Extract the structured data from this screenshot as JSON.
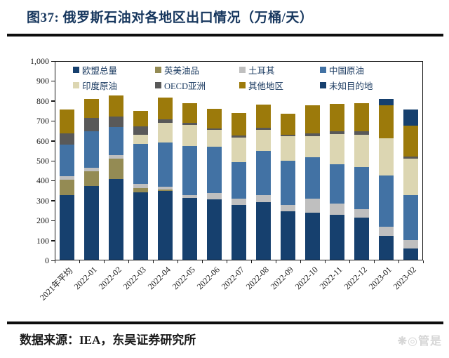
{
  "header": {
    "title": "图37:  俄罗斯石油对各地区出口情况（万桶/天）"
  },
  "footer": {
    "source": "数据来源：IEA，东吴证券研究所"
  },
  "watermark": "❋◎管是",
  "chart_data": {
    "type": "bar",
    "stacked": true,
    "title": "俄罗斯石油对各地区出口情况",
    "unit": "万桶/天",
    "grid": false,
    "legend_position": "top-inside",
    "ylim": [
      0,
      1000
    ],
    "y_tick_step": 100,
    "y_ticks": [
      "1,000",
      "900",
      "800",
      "700",
      "600",
      "500",
      "400",
      "300",
      "200",
      "100",
      "0"
    ],
    "categories": [
      "2021年平均",
      "2022-01",
      "2022-02",
      "2022-03",
      "2022-04",
      "2022-05",
      "2022-06",
      "2022-07",
      "2022-08",
      "2022-09",
      "2022-10",
      "2022-11",
      "2022-12",
      "2023-01",
      "2023-02"
    ],
    "series": [
      {
        "name": "欧盟总量",
        "color": "#16406E",
        "values": [
          323,
          368,
          406,
          337,
          344,
          309,
          302,
          273,
          287,
          242,
          236,
          224,
          210,
          121,
          56
        ]
      },
      {
        "name": "英美油品",
        "color": "#948B54",
        "values": [
          78,
          75,
          100,
          22,
          8,
          0,
          0,
          0,
          0,
          0,
          0,
          0,
          0,
          0,
          0
        ]
      },
      {
        "name": "土耳其",
        "color": "#BFBFBF",
        "values": [
          18,
          18,
          18,
          22,
          14,
          14,
          31,
          32,
          36,
          33,
          69,
          57,
          45,
          45,
          42
        ]
      },
      {
        "name": "中国原油",
        "color": "#4272A4",
        "values": [
          160,
          185,
          143,
          200,
          222,
          249,
          233,
          184,
          223,
          220,
          208,
          198,
          210,
          258,
          226
        ]
      },
      {
        "name": "印度原油",
        "color": "#DCD6B2",
        "values": [
          0,
          0,
          0,
          45,
          98,
          105,
          84,
          125,
          107,
          125,
          107,
          152,
          163,
          184,
          184
        ]
      },
      {
        "name": "OECD亚洲",
        "color": "#595959",
        "values": [
          54,
          66,
          50,
          42,
          17,
          11,
          8,
          9,
          8,
          8,
          15,
          14,
          17,
          2,
          8
        ]
      },
      {
        "name": "其他地区",
        "color": "#9C7A0B",
        "values": [
          122,
          93,
          107,
          77,
          109,
          96,
          99,
          112,
          116,
          105,
          141,
          138,
          139,
          164,
          158
        ]
      },
      {
        "name": "未知目的地",
        "color": "#16406E",
        "values": [
          0,
          0,
          0,
          0,
          0,
          0,
          0,
          0,
          0,
          0,
          0,
          0,
          0,
          32,
          80
        ]
      }
    ],
    "legend_order": [
      "欧盟总量",
      "英美油品",
      "土耳其",
      "中国原油",
      "印度原油",
      "OECD亚洲",
      "其他地区",
      "未知目的地"
    ],
    "totals": [
      755,
      805,
      824,
      745,
      812,
      784,
      757,
      735,
      777,
      733,
      776,
      783,
      784,
      806,
      754
    ]
  }
}
